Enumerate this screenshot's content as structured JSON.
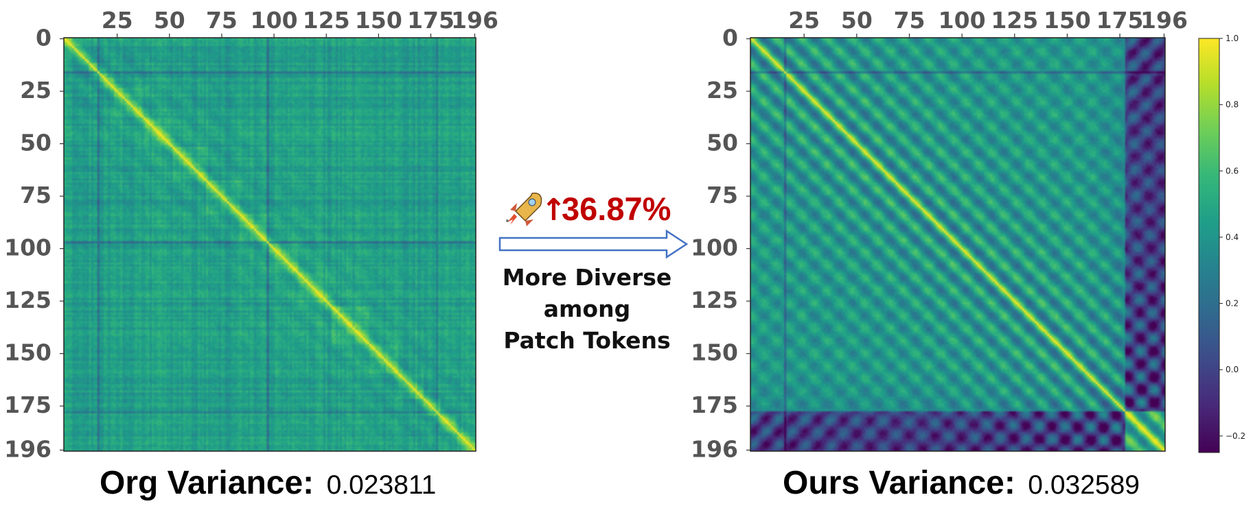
{
  "chart_data": [
    {
      "type": "heatmap",
      "panel": "left",
      "size": 197,
      "x_ticks": [
        "25",
        "50",
        "75",
        "100",
        "125",
        "150",
        "175",
        "196"
      ],
      "y_ticks": [
        "0",
        "25",
        "50",
        "75",
        "100",
        "125",
        "150",
        "175",
        "196"
      ],
      "tick_values": [
        0,
        25,
        50,
        75,
        100,
        125,
        150,
        175,
        196
      ],
      "x_tick_values": [
        25,
        50,
        75,
        100,
        125,
        150,
        175,
        196
      ],
      "caption_label": "Org Variance:",
      "caption_value": "0.023811",
      "value_range": [
        -0.25,
        1.0
      ],
      "diagonal": 1.0,
      "typical_offdiag": 0.5
    },
    {
      "type": "heatmap",
      "panel": "right",
      "size": 197,
      "x_ticks": [
        "25",
        "50",
        "75",
        "100",
        "125",
        "150",
        "175",
        "196"
      ],
      "y_ticks": [
        "0",
        "25",
        "50",
        "75",
        "100",
        "125",
        "150",
        "175",
        "196"
      ],
      "tick_values": [
        0,
        25,
        50,
        75,
        100,
        125,
        150,
        175,
        196
      ],
      "x_tick_values": [
        25,
        50,
        75,
        100,
        125,
        150,
        175,
        196
      ],
      "caption_label": "Ours Variance:",
      "caption_value": "0.032589",
      "value_range": [
        -0.25,
        1.0
      ],
      "diagonal": 1.0,
      "typical_offdiag": 0.45
    }
  ],
  "colorbar": {
    "min": -0.25,
    "max": 1.0,
    "ticks": [
      "1.0",
      "0.8",
      "0.6",
      "0.4",
      "0.2",
      "0.0",
      "−0.2"
    ],
    "tick_values": [
      1.0,
      0.8,
      0.6,
      0.4,
      0.2,
      0.0,
      -0.2
    ],
    "colormap": "viridis"
  },
  "middle": {
    "icon": "rocket-icon",
    "arrow_up": "↑",
    "percent": "36.87%",
    "line1": "More Diverse",
    "line2": "among",
    "line3": "Patch Tokens",
    "arrow_color": "#4472c4",
    "percent_color": "#c00000"
  }
}
